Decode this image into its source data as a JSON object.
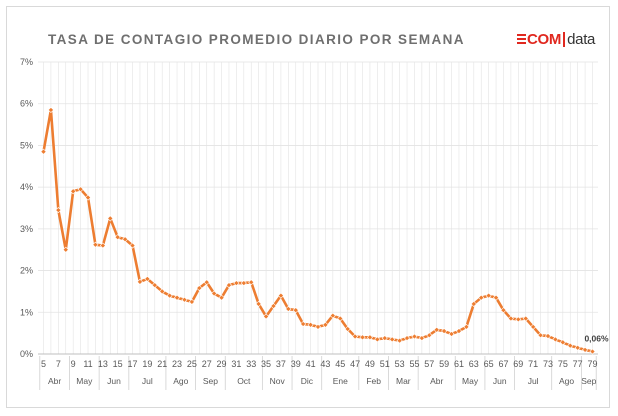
{
  "title": "TASA DE CONTAGIO PROMEDIO DIARIO POR SEMANA",
  "logo": {
    "part1": "COM",
    "part2": "data",
    "color": "#e0281f"
  },
  "colors": {
    "series": "#ed7d31",
    "grid": "#e3e3e3",
    "axis": "#bfbfbf"
  },
  "chart_data": {
    "type": "line",
    "title": "TASA DE CONTAGIO PROMEDIO DIARIO POR SEMANA",
    "xlabel": "",
    "ylabel": "",
    "ylim": [
      0,
      7
    ],
    "y_unit": "%",
    "y_ticks": [
      "0%",
      "1%",
      "2%",
      "3%",
      "4%",
      "5%",
      "6%",
      "7%"
    ],
    "x": [
      5,
      6,
      7,
      8,
      9,
      10,
      11,
      12,
      13,
      14,
      15,
      16,
      17,
      18,
      19,
      20,
      21,
      22,
      23,
      24,
      25,
      26,
      27,
      28,
      29,
      30,
      31,
      32,
      33,
      34,
      35,
      36,
      37,
      38,
      39,
      40,
      41,
      42,
      43,
      44,
      45,
      46,
      47,
      48,
      49,
      50,
      51,
      52,
      53,
      54,
      55,
      56,
      57,
      58,
      59,
      60,
      61,
      62,
      63,
      64,
      65,
      66,
      67,
      68,
      69,
      70,
      71,
      72,
      73,
      74,
      75,
      76,
      77,
      78,
      79
    ],
    "x_tick_labels": [
      "5",
      "7",
      "9",
      "11",
      "13",
      "15",
      "17",
      "19",
      "21",
      "23",
      "25",
      "27",
      "29",
      "31",
      "33",
      "35",
      "37",
      "39",
      "41",
      "43",
      "45",
      "47",
      "49",
      "51",
      "53",
      "55",
      "57",
      "59",
      "61",
      "63",
      "65",
      "67",
      "69",
      "71",
      "73",
      "75",
      "77",
      "79"
    ],
    "month_labels": [
      {
        "label": "Abr",
        "from": 5,
        "to": 8
      },
      {
        "label": "May",
        "from": 9,
        "to": 12
      },
      {
        "label": "Jun",
        "from": 13,
        "to": 16
      },
      {
        "label": "Jul",
        "from": 17,
        "to": 21
      },
      {
        "label": "Ago",
        "from": 22,
        "to": 25
      },
      {
        "label": "Sep",
        "from": 26,
        "to": 29
      },
      {
        "label": "Oct",
        "from": 30,
        "to": 34
      },
      {
        "label": "Nov",
        "from": 35,
        "to": 38
      },
      {
        "label": "Dic",
        "from": 39,
        "to": 42
      },
      {
        "label": "Ene",
        "from": 43,
        "to": 47
      },
      {
        "label": "Feb",
        "from": 48,
        "to": 51
      },
      {
        "label": "Mar",
        "from": 52,
        "to": 55
      },
      {
        "label": "Abr",
        "from": 56,
        "to": 60
      },
      {
        "label": "May",
        "from": 61,
        "to": 64
      },
      {
        "label": "Jun",
        "from": 65,
        "to": 68
      },
      {
        "label": "Jul",
        "from": 69,
        "to": 73
      },
      {
        "label": "Ago",
        "from": 74,
        "to": 77
      },
      {
        "label": "Sep",
        "from": 78,
        "to": 79
      }
    ],
    "series": [
      {
        "values": [
          4.85,
          5.85,
          3.45,
          2.5,
          3.9,
          3.95,
          3.75,
          2.62,
          2.6,
          3.25,
          2.8,
          2.75,
          2.6,
          1.73,
          1.8,
          1.65,
          1.5,
          1.4,
          1.35,
          1.3,
          1.25,
          1.58,
          1.72,
          1.45,
          1.35,
          1.65,
          1.7,
          1.7,
          1.72,
          1.2,
          0.9,
          1.15,
          1.4,
          1.08,
          1.05,
          0.72,
          0.7,
          0.65,
          0.7,
          0.92,
          0.85,
          0.6,
          0.42,
          0.4,
          0.4,
          0.35,
          0.38,
          0.35,
          0.32,
          0.38,
          0.42,
          0.38,
          0.45,
          0.58,
          0.55,
          0.48,
          0.55,
          0.65,
          1.2,
          1.35,
          1.4,
          1.35,
          1.05,
          0.85,
          0.83,
          0.85,
          0.65,
          0.45,
          0.43,
          0.35,
          0.28,
          0.2,
          0.15,
          0.1,
          0.06
        ]
      }
    ],
    "data_labels": [
      {
        "x": 79,
        "text": "0,06%"
      }
    ],
    "grid": true,
    "legend": "none"
  }
}
